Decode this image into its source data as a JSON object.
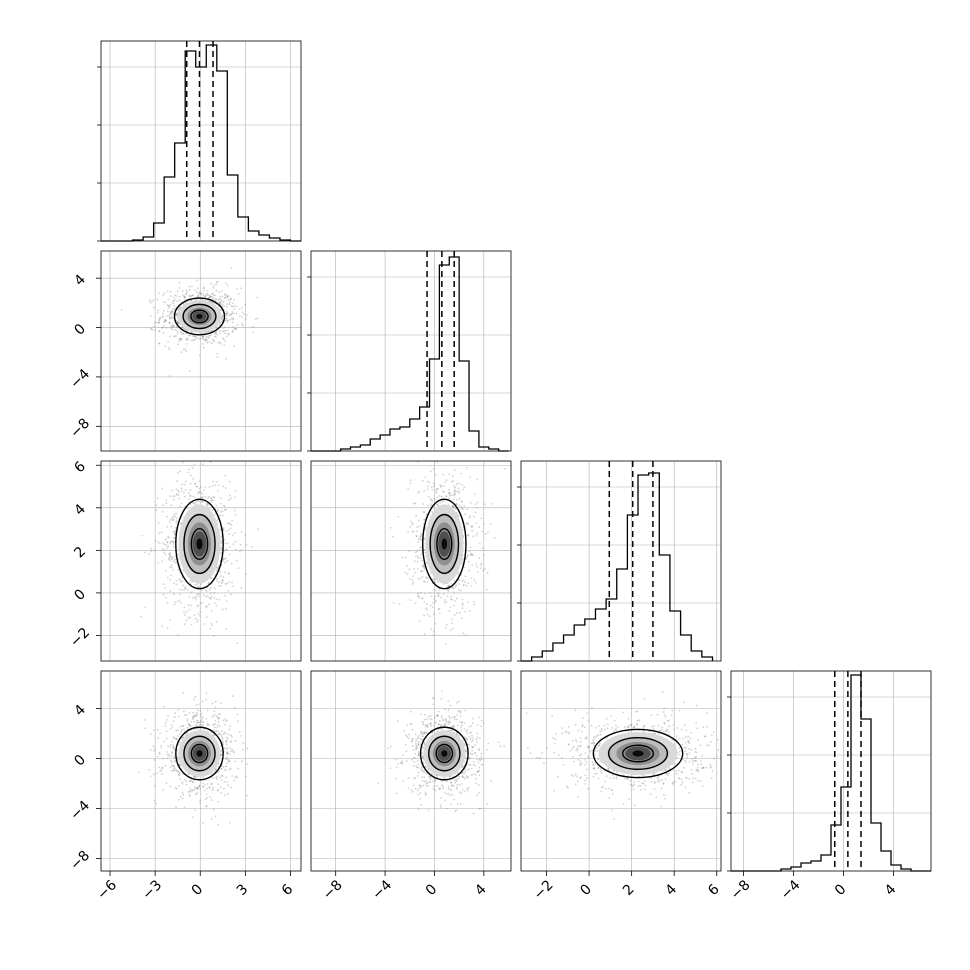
{
  "chart_data": {
    "type": "corner",
    "grid": true,
    "variables": 4,
    "histograms": [
      {
        "panel": "hist-0",
        "bin_edges": [
          -6.6,
          -5.9,
          -5.2,
          -4.5,
          -3.8,
          -3.1,
          -2.4,
          -1.7,
          -1.0,
          -0.3,
          0.4,
          1.1,
          1.8,
          2.5,
          3.2,
          3.9,
          4.6,
          5.3,
          6.0,
          6.7
        ],
        "counts": [
          0.0,
          0.0,
          0.0,
          0.005,
          0.02,
          0.09,
          0.32,
          0.49,
          0.95,
          0.87,
          0.98,
          0.85,
          0.33,
          0.12,
          0.05,
          0.03,
          0.015,
          0.005,
          0.0
        ],
        "quantiles": [
          -0.9,
          -0.05,
          0.85
        ],
        "xlim": [
          -6.6,
          6.7
        ],
        "ylim": [
          0,
          1.0
        ]
      },
      {
        "panel": "hist-1",
        "bin_edges": [
          -10.0,
          -9.2,
          -8.4,
          -7.6,
          -6.8,
          -6.0,
          -5.2,
          -4.4,
          -3.6,
          -2.8,
          -2.0,
          -1.2,
          -0.4,
          0.4,
          1.2,
          2.0,
          2.8,
          3.6,
          4.4,
          5.2,
          6.0
        ],
        "counts": [
          0.0,
          0.0,
          0.0,
          0.01,
          0.02,
          0.03,
          0.06,
          0.08,
          0.11,
          0.12,
          0.16,
          0.22,
          0.46,
          0.93,
          0.97,
          0.45,
          0.1,
          0.02,
          0.01,
          0.0
        ],
        "quantiles": [
          -0.6,
          0.6,
          1.6
        ],
        "xlim": [
          -10.0,
          6.2
        ],
        "ylim": [
          0,
          1.0
        ]
      },
      {
        "panel": "hist-2",
        "bin_edges": [
          -3.2,
          -2.7,
          -2.2,
          -1.7,
          -1.2,
          -0.7,
          -0.2,
          0.3,
          0.8,
          1.3,
          1.8,
          2.3,
          2.8,
          3.3,
          3.8,
          4.3,
          4.8,
          5.3,
          5.8
        ],
        "counts": [
          0.0,
          0.02,
          0.05,
          0.09,
          0.13,
          0.18,
          0.21,
          0.26,
          0.31,
          0.46,
          0.73,
          0.93,
          0.94,
          0.53,
          0.25,
          0.13,
          0.05,
          0.02
        ],
        "quantiles": [
          0.95,
          2.05,
          3.0
        ],
        "xlim": [
          -3.2,
          6.2
        ],
        "ylim": [
          0,
          1.0
        ]
      },
      {
        "panel": "hist-3",
        "bin_edges": [
          -9.0,
          -8.2,
          -7.4,
          -6.6,
          -5.8,
          -5.0,
          -4.2,
          -3.4,
          -2.6,
          -1.8,
          -1.0,
          -0.2,
          0.6,
          1.4,
          2.2,
          3.0,
          3.8,
          4.6,
          5.4,
          6.2,
          7.0
        ],
        "counts": [
          0.0,
          0.0,
          0.0,
          0.0,
          0.0,
          0.01,
          0.02,
          0.04,
          0.05,
          0.08,
          0.23,
          0.42,
          0.98,
          0.76,
          0.24,
          0.1,
          0.03,
          0.01,
          0.0,
          0.0
        ],
        "quantiles": [
          -0.7,
          0.35,
          1.4
        ],
        "xlim": [
          -9.0,
          7.0
        ],
        "ylim": [
          0,
          1.0
        ]
      }
    ],
    "density_panels": [
      {
        "panel": "2d-1-0",
        "x_var": 0,
        "y_var": 1,
        "center": [
          -0.05,
          0.9
        ],
        "spread": [
          0.95,
          0.85
        ],
        "xlim": [
          -6.6,
          6.7
        ],
        "ylim": [
          -10.0,
          6.2
        ]
      },
      {
        "panel": "2d-2-0",
        "x_var": 0,
        "y_var": 2,
        "center": [
          -0.05,
          2.3
        ],
        "spread": [
          0.9,
          1.2
        ],
        "xlim": [
          -6.6,
          6.7
        ],
        "ylim": [
          -3.2,
          6.2
        ]
      },
      {
        "panel": "2d-2-1",
        "x_var": 1,
        "y_var": 2,
        "center": [
          0.8,
          2.3
        ],
        "spread": [
          1.0,
          1.2
        ],
        "xlim": [
          -10.0,
          6.2
        ],
        "ylim": [
          -3.2,
          6.2
        ]
      },
      {
        "panel": "2d-3-0",
        "x_var": 0,
        "y_var": 3,
        "center": [
          -0.05,
          0.4
        ],
        "spread": [
          0.9,
          1.2
        ],
        "xlim": [
          -6.6,
          6.7
        ],
        "ylim": [
          -9.0,
          7.0
        ]
      },
      {
        "panel": "2d-3-1",
        "x_var": 1,
        "y_var": 3,
        "center": [
          0.8,
          0.4
        ],
        "spread": [
          1.1,
          1.2
        ],
        "xlim": [
          -10.0,
          6.2
        ],
        "ylim": [
          -9.0,
          7.0
        ]
      },
      {
        "panel": "2d-3-2",
        "x_var": 2,
        "y_var": 3,
        "center": [
          2.3,
          0.4
        ],
        "spread": [
          1.2,
          1.1
        ],
        "xlim": [
          -3.2,
          6.2
        ],
        "ylim": [
          -9.0,
          7.0
        ]
      }
    ],
    "axis_ticks": {
      "x": [
        {
          "values": [
            -6,
            -3,
            0,
            3,
            6
          ],
          "labels": [
            "−6",
            "−3",
            "0",
            "3",
            "6"
          ]
        },
        {
          "values": [
            -8,
            -4,
            0,
            4
          ],
          "labels": [
            "−8",
            "−4",
            "0",
            "4"
          ]
        },
        {
          "values": [
            -2,
            0,
            2,
            4,
            6
          ],
          "labels": [
            "−2",
            "0",
            "2",
            "4",
            "6"
          ]
        },
        {
          "values": [
            -8,
            -4,
            0,
            4
          ],
          "labels": [
            "−8",
            "−4",
            "0",
            "4"
          ]
        }
      ],
      "y": [
        {
          "row": 1,
          "values": [
            4,
            0,
            -4,
            -8
          ],
          "labels": [
            "4",
            "0",
            "−4",
            "−8"
          ]
        },
        {
          "row": 2,
          "values": [
            6,
            4,
            2,
            0,
            -2
          ],
          "labels": [
            "6",
            "4",
            "2",
            "0",
            "−2"
          ]
        },
        {
          "row": 3,
          "values": [
            4,
            0,
            -4,
            -8
          ],
          "labels": [
            "4",
            "0",
            "−4",
            "−8"
          ]
        }
      ]
    },
    "colors": {
      "line": "#000000",
      "points": "#7f7f7f",
      "grid": "#b0b0b0"
    }
  }
}
